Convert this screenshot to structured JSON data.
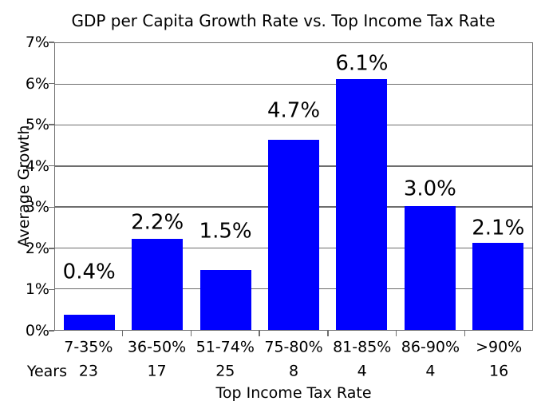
{
  "figure": {
    "background": "#ffffff"
  },
  "chart_data": {
    "type": "bar",
    "title": "GDP per Capita Growth Rate vs. Top Income Tax Rate",
    "xlabel": "Top Income Tax Rate",
    "ylabel": "Average Growth",
    "categories": [
      "7-35%",
      "36-50%",
      "51-74%",
      "75-80%",
      "81-85%",
      "86-90%",
      ">90%"
    ],
    "values": [
      0.37,
      2.23,
      1.47,
      4.65,
      6.13,
      3.02,
      2.13
    ],
    "bar_labels": [
      "0.4%",
      "2.2%",
      "1.5%",
      "4.7%",
      "6.1%",
      "3.0%",
      "2.1%"
    ],
    "bar_label_y": [
      1.4,
      2.62,
      2.39,
      5.35,
      6.5,
      3.43,
      2.48
    ],
    "years_row_label": "Years",
    "years": [
      "23",
      "17",
      "25",
      "8",
      "4",
      "4",
      "16"
    ],
    "ylim": [
      0,
      7
    ],
    "yticks": [
      "0%",
      "1%",
      "2%",
      "3%",
      "4%",
      "5%",
      "6%",
      "7%"
    ],
    "grid": true,
    "legend": "none",
    "colors": {
      "bar": "#0000ff",
      "axis": "#6e6e6e",
      "grid": "#6e6e6e",
      "text": "#000000"
    }
  }
}
